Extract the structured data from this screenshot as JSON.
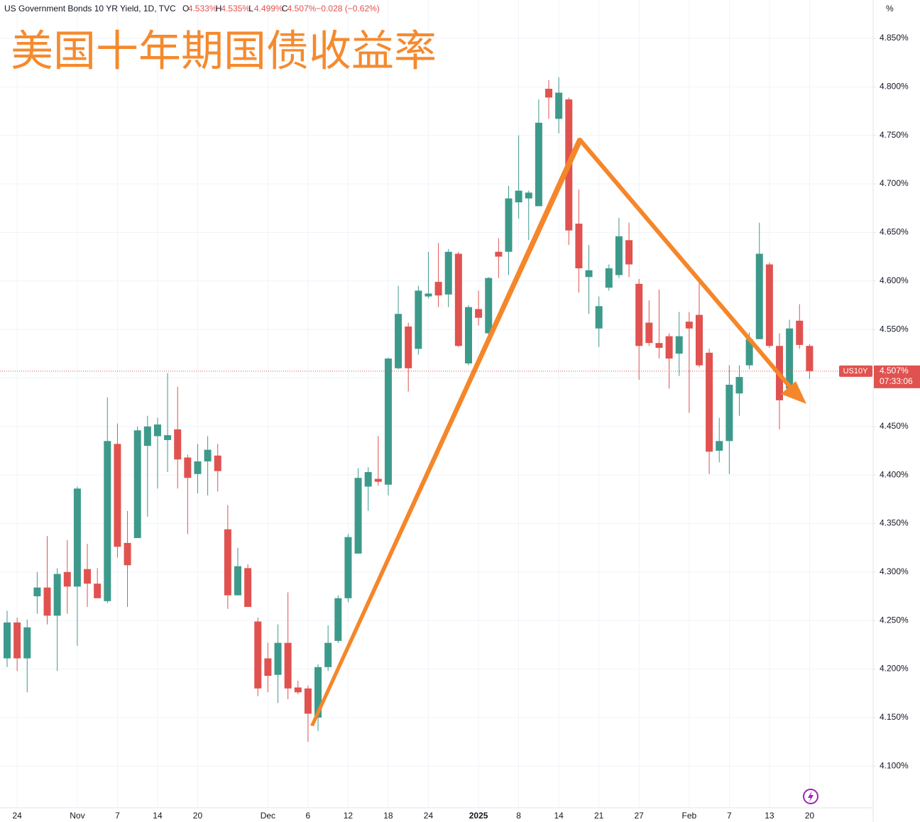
{
  "chart_data": {
    "type": "candlestick",
    "header": {
      "symbol": "US Government Bonds 10 YR Yield, 1D, TVC",
      "ohlc": [
        {
          "key": "O",
          "value": "4.533%"
        },
        {
          "key": "H",
          "value": "4.535%"
        },
        {
          "key": "L",
          "value": "4.499%"
        },
        {
          "key": "C",
          "value": "4.507%"
        }
      ],
      "change": "−0.028 (−0.62%)"
    },
    "title": "美国十年期国债收益率",
    "y_axis_label": "%",
    "price_tag": {
      "symbol": "US10Y",
      "price": "4.507%",
      "countdown": "07:33:06"
    },
    "up_color": "#3d9a8b",
    "down_color": "#e0524f",
    "categories": [
      null,
      "24",
      null,
      null,
      null,
      null,
      null,
      "Nov",
      null,
      null,
      null,
      "7",
      null,
      null,
      null,
      "14",
      null,
      null,
      null,
      "20",
      null,
      null,
      null,
      null,
      null,
      null,
      "Dec",
      null,
      null,
      null,
      "6",
      null,
      null,
      null,
      "12",
      null,
      null,
      null,
      "18",
      null,
      null,
      null,
      "24",
      null,
      null,
      null,
      null,
      "2025",
      null,
      null,
      null,
      "8",
      null,
      null,
      null,
      "14",
      null,
      null,
      null,
      "21",
      null,
      null,
      null,
      "27",
      null,
      null,
      null,
      null,
      "Feb",
      null,
      null,
      null,
      "7",
      null,
      null,
      null,
      "13",
      null,
      null,
      null,
      "20"
    ],
    "open": [
      4.211,
      4.248,
      4.211,
      4.275,
      4.284,
      4.255,
      4.3,
      4.285,
      4.303,
      4.288,
      4.27,
      4.432,
      4.33,
      4.335,
      4.43,
      4.44,
      4.436,
      4.447,
      4.418,
      4.401,
      4.414,
      4.42,
      4.344,
      4.276,
      4.304,
      4.249,
      4.211,
      4.194,
      4.227,
      4.181,
      4.18,
      4.15,
      4.202,
      4.229,
      4.273,
      4.319,
      4.388,
      4.396,
      4.39,
      4.51,
      4.553,
      4.53,
      4.584,
      4.599,
      4.586,
      4.628,
      4.515,
      4.571,
      4.546,
      4.63,
      4.63,
      4.681,
      4.685,
      4.677,
      4.798,
      4.767,
      4.787,
      4.659,
      4.604,
      4.551,
      4.593,
      4.606,
      4.642,
      4.597,
      4.557,
      4.536,
      4.543,
      4.525,
      4.558,
      4.565,
      4.526,
      4.425,
      4.435,
      4.484,
      4.513,
      4.54,
      4.617,
      4.533,
      4.489,
      4.559,
      4.533
    ],
    "high": [
      4.26,
      4.253,
      4.251,
      4.3,
      4.337,
      4.304,
      4.333,
      4.388,
      4.329,
      4.304,
      4.48,
      4.453,
      4.363,
      4.45,
      4.461,
      4.459,
      4.505,
      4.491,
      4.421,
      4.432,
      4.44,
      4.432,
      4.369,
      4.325,
      4.308,
      4.253,
      4.227,
      4.246,
      4.279,
      4.188,
      4.183,
      4.205,
      4.245,
      4.276,
      4.339,
      4.407,
      4.408,
      4.44,
      4.521,
      4.595,
      4.557,
      4.595,
      4.63,
      4.639,
      4.633,
      4.63,
      4.575,
      4.59,
      4.604,
      4.644,
      4.698,
      4.75,
      4.693,
      4.787,
      4.807,
      4.81,
      4.789,
      4.694,
      4.637,
      4.584,
      4.617,
      4.665,
      4.66,
      4.602,
      4.58,
      4.591,
      4.546,
      4.568,
      4.568,
      4.598,
      4.53,
      4.459,
      4.513,
      4.513,
      4.547,
      4.66,
      4.619,
      4.546,
      4.56,
      4.576,
      4.535
    ],
    "low": [
      4.202,
      4.198,
      4.176,
      4.257,
      4.246,
      4.198,
      4.257,
      4.224,
      4.264,
      4.273,
      4.268,
      4.315,
      4.264,
      4.335,
      4.357,
      4.386,
      4.403,
      4.386,
      4.339,
      4.381,
      4.379,
      4.383,
      4.262,
      4.276,
      4.264,
      4.172,
      4.176,
      4.165,
      4.169,
      4.174,
      4.125,
      4.136,
      4.198,
      4.227,
      4.269,
      4.319,
      4.363,
      4.389,
      4.379,
      4.509,
      4.486,
      4.524,
      4.582,
      4.573,
      4.573,
      4.532,
      4.513,
      4.554,
      4.544,
      4.603,
      4.606,
      4.664,
      4.642,
      4.677,
      4.767,
      4.752,
      4.637,
      4.588,
      4.566,
      4.532,
      4.59,
      4.603,
      4.604,
      4.498,
      4.533,
      4.52,
      4.489,
      4.502,
      4.464,
      4.511,
      4.401,
      4.413,
      4.401,
      4.461,
      4.509,
      4.54,
      4.531,
      4.447,
      4.489,
      4.53,
      4.499
    ],
    "close": [
      4.248,
      4.211,
      4.243,
      4.284,
      4.255,
      4.298,
      4.285,
      4.386,
      4.288,
      4.273,
      4.435,
      4.326,
      4.307,
      4.446,
      4.45,
      4.452,
      4.441,
      4.416,
      4.397,
      4.414,
      4.426,
      4.404,
      4.276,
      4.306,
      4.264,
      4.18,
      4.193,
      4.227,
      4.18,
      4.176,
      4.154,
      4.202,
      4.227,
      4.273,
      4.336,
      4.397,
      4.403,
      4.393,
      4.52,
      4.566,
      4.51,
      4.59,
      4.587,
      4.585,
      4.63,
      4.533,
      4.573,
      4.562,
      4.603,
      4.625,
      4.685,
      4.693,
      4.691,
      4.763,
      4.789,
      4.794,
      4.652,
      4.613,
      4.611,
      4.574,
      4.613,
      4.646,
      4.617,
      4.533,
      4.536,
      4.531,
      4.52,
      4.543,
      4.551,
      4.513,
      4.424,
      4.435,
      4.493,
      4.501,
      4.54,
      4.628,
      4.533,
      4.477,
      4.551,
      4.534,
      4.507
    ],
    "ylim": [
      4.057,
      4.8895
    ],
    "yticks": [
      {
        "value": 4.1,
        "label": "4.100%"
      },
      {
        "value": 4.15,
        "label": "4.150%"
      },
      {
        "value": 4.2,
        "label": "4.200%"
      },
      {
        "value": 4.25,
        "label": "4.250%"
      },
      {
        "value": 4.3,
        "label": "4.300%"
      },
      {
        "value": 4.35,
        "label": "4.350%"
      },
      {
        "value": 4.4,
        "label": "4.400%"
      },
      {
        "value": 4.45,
        "label": "4.450%"
      },
      {
        "value": 4.5,
        "label": "4.500%"
      },
      {
        "value": 4.55,
        "label": "4.550%"
      },
      {
        "value": 4.6,
        "label": "4.600%"
      },
      {
        "value": 4.65,
        "label": "4.650%"
      },
      {
        "value": 4.7,
        "label": "4.700%"
      },
      {
        "value": 4.75,
        "label": "4.750%"
      },
      {
        "value": 4.8,
        "label": "4.800%"
      },
      {
        "value": 4.85,
        "label": "4.850%"
      }
    ],
    "grid": true
  }
}
